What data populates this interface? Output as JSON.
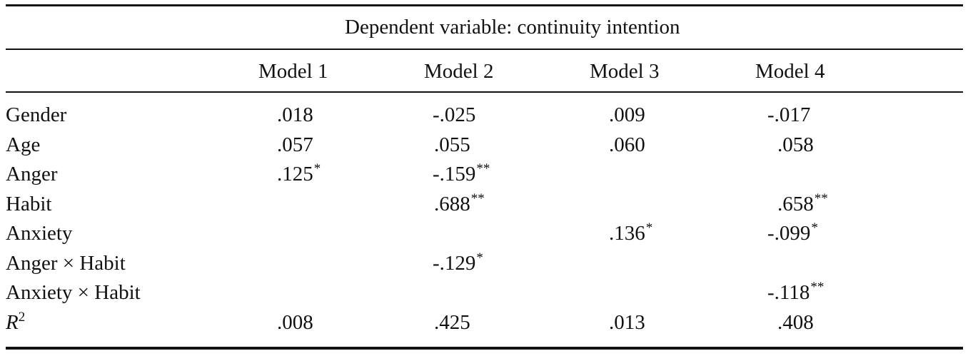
{
  "table": {
    "dependent_variable": "Dependent variable: continuity intention",
    "columns": [
      "Model 1",
      "Model 2",
      "Model 3",
      "Model 4"
    ],
    "rows": [
      {
        "label": "Gender",
        "cells": [
          {
            "value": ".018",
            "sig": ""
          },
          {
            "value": "-.025",
            "sig": ""
          },
          {
            "value": ".009",
            "sig": ""
          },
          {
            "value": "-.017",
            "sig": ""
          }
        ]
      },
      {
        "label": "Age",
        "cells": [
          {
            "value": ".057",
            "sig": ""
          },
          {
            "value": ".055",
            "sig": ""
          },
          {
            "value": ".060",
            "sig": ""
          },
          {
            "value": ".058",
            "sig": ""
          }
        ]
      },
      {
        "label": "Anger",
        "cells": [
          {
            "value": ".125",
            "sig": "*"
          },
          {
            "value": "-.159",
            "sig": "**"
          },
          {
            "value": "",
            "sig": ""
          },
          {
            "value": "",
            "sig": ""
          }
        ]
      },
      {
        "label": "Habit",
        "cells": [
          {
            "value": "",
            "sig": ""
          },
          {
            "value": ".688",
            "sig": "**"
          },
          {
            "value": "",
            "sig": ""
          },
          {
            "value": ".658",
            "sig": "**"
          }
        ]
      },
      {
        "label": "Anxiety",
        "cells": [
          {
            "value": "",
            "sig": ""
          },
          {
            "value": "",
            "sig": ""
          },
          {
            "value": ".136",
            "sig": "*"
          },
          {
            "value": "-.099",
            "sig": "*"
          }
        ]
      },
      {
        "label": "Anger × Habit",
        "cells": [
          {
            "value": "",
            "sig": ""
          },
          {
            "value": "-.129",
            "sig": "*"
          },
          {
            "value": "",
            "sig": ""
          },
          {
            "value": "",
            "sig": ""
          }
        ]
      },
      {
        "label": "Anxiety × Habit",
        "cells": [
          {
            "value": "",
            "sig": ""
          },
          {
            "value": "",
            "sig": ""
          },
          {
            "value": "",
            "sig": ""
          },
          {
            "value": "-.118",
            "sig": "**"
          }
        ]
      }
    ],
    "r2_row": {
      "label_letter": "R",
      "label_sup": "2",
      "cells": [
        {
          "value": ".008",
          "sig": ""
        },
        {
          "value": ".425",
          "sig": ""
        },
        {
          "value": ".013",
          "sig": ""
        },
        {
          "value": ".408",
          "sig": ""
        }
      ]
    }
  }
}
